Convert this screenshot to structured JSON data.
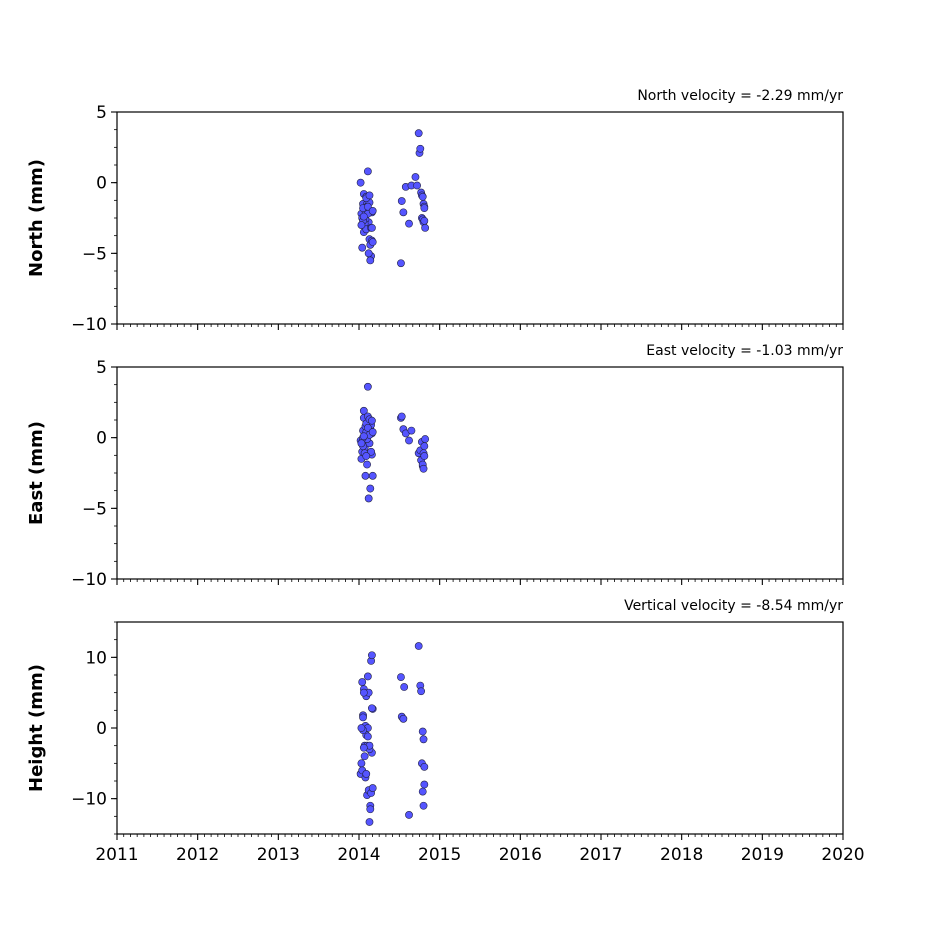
{
  "chart_data": [
    {
      "type": "scatter",
      "title": "North velocity = -2.29 mm/yr",
      "ylabel": "North (mm)",
      "xlim": [
        2011,
        2020
      ],
      "ylim": [
        -10,
        5
      ],
      "yticks": [
        "5",
        "0",
        "−5",
        "−10"
      ],
      "ytick_values": [
        5,
        0,
        -5,
        -10
      ],
      "xtick_labels_shown": false,
      "marker_color": "#5555ff",
      "series": [
        {
          "x": [
            2014.02,
            2014.03,
            2014.04,
            2014.05,
            2014.06,
            2014.07,
            2014.08,
            2014.09,
            2014.1,
            2014.11,
            2014.12,
            2014.13,
            2014.14,
            2014.15,
            2014.16,
            2014.17,
            2014.04,
            2014.06,
            2014.08,
            2014.1,
            2014.12,
            2014.14,
            2014.16,
            2014.05,
            2014.07,
            2014.09,
            2014.11,
            2014.13,
            2014.15,
            2014.05,
            2014.09,
            2014.13,
            2014.03,
            2014.06,
            2014.11,
            2014.16,
            2014.17,
            2014.52,
            2014.53,
            2014.55,
            2014.58,
            2014.62,
            2014.65,
            2014.7,
            2014.72,
            2014.74,
            2014.75,
            2014.76,
            2014.77,
            2014.78,
            2014.79,
            2014.8,
            2014.81,
            2014.78,
            2014.79,
            2014.8,
            2014.81,
            2014.82,
            2014.81
          ],
          "y": [
            0.0,
            -2.2,
            -2.5,
            -1.5,
            -0.8,
            -3.0,
            -2.0,
            -1.0,
            -1.5,
            0.8,
            -2.8,
            -4.0,
            -4.4,
            -5.2,
            -4.1,
            -4.2,
            -4.6,
            -3.5,
            -2.6,
            -1.7,
            -5.0,
            -5.5,
            -2.1,
            -1.8,
            -2.9,
            -3.3,
            -2.2,
            -1.4,
            -3.2,
            -2.7,
            -1.1,
            -0.9,
            -3.0,
            -2.4,
            -1.7,
            -3.2,
            -2.0,
            -5.7,
            -1.3,
            -2.1,
            -0.3,
            -2.9,
            -0.2,
            0.4,
            -0.2,
            3.5,
            2.1,
            2.4,
            -0.7,
            -0.9,
            -1.0,
            -1.5,
            -1.7,
            -2.5,
            -2.6,
            -2.8,
            -2.7,
            -3.2,
            -1.8
          ]
        }
      ]
    },
    {
      "type": "scatter",
      "title": "East velocity = -1.03 mm/yr",
      "ylabel": "East (mm)",
      "xlim": [
        2011,
        2020
      ],
      "ylim": [
        -10,
        5
      ],
      "yticks": [
        "5",
        "0",
        "−5",
        "−10"
      ],
      "ytick_values": [
        5,
        0,
        -5,
        -10
      ],
      "xtick_labels_shown": false,
      "marker_color": "#5555ff",
      "series": [
        {
          "x": [
            2014.02,
            2014.03,
            2014.04,
            2014.05,
            2014.06,
            2014.07,
            2014.08,
            2014.09,
            2014.1,
            2014.11,
            2014.12,
            2014.13,
            2014.14,
            2014.15,
            2014.16,
            2014.17,
            2014.04,
            2014.06,
            2014.08,
            2014.1,
            2014.12,
            2014.14,
            2014.16,
            2014.05,
            2014.07,
            2014.09,
            2014.11,
            2014.13,
            2014.15,
            2014.05,
            2014.09,
            2014.13,
            2014.03,
            2014.06,
            2014.11,
            2014.16,
            2014.17,
            2014.52,
            2014.53,
            2014.55,
            2014.58,
            2014.62,
            2014.65,
            2014.74,
            2014.76,
            2014.77,
            2014.78,
            2014.79,
            2014.8,
            2014.81,
            2014.79,
            2014.8,
            2014.81,
            2014.82
          ],
          "y": [
            -0.2,
            -1.5,
            -1.0,
            0.5,
            1.9,
            -0.7,
            -2.7,
            0.4,
            -1.9,
            3.6,
            1.2,
            -0.4,
            0.6,
            0.9,
            -1.2,
            -2.7,
            -0.3,
            1.4,
            0.8,
            -0.1,
            -4.3,
            -3.6,
            0.3,
            0.0,
            -1.1,
            1.0,
            1.5,
            0.2,
            -1.0,
            -0.6,
            -1.3,
            1.3,
            -0.4,
            0.1,
            0.7,
            1.2,
            0.4,
            1.4,
            1.5,
            0.6,
            0.3,
            -0.2,
            0.5,
            -1.1,
            -0.9,
            -1.6,
            -0.3,
            -2.0,
            -1.1,
            -1.3,
            -1.9,
            -2.2,
            -0.6,
            -0.1
          ]
        }
      ]
    },
    {
      "type": "scatter",
      "title": "Vertical velocity = -8.54 mm/yr",
      "ylabel": "Height (mm)",
      "xlim": [
        2011,
        2020
      ],
      "ylim": [
        -15,
        15
      ],
      "yticks": [
        "10",
        "0",
        "−10"
      ],
      "ytick_values": [
        10,
        0,
        -10
      ],
      "xticks": [
        "2011",
        "2012",
        "2013",
        "2014",
        "2015",
        "2016",
        "2017",
        "2018",
        "2019",
        "2020"
      ],
      "xtick_values": [
        2011,
        2012,
        2013,
        2014,
        2015,
        2016,
        2017,
        2018,
        2019,
        2020
      ],
      "marker_color": "#5555ff",
      "series": [
        {
          "x": [
            2014.02,
            2014.03,
            2014.04,
            2014.05,
            2014.06,
            2014.07,
            2014.08,
            2014.09,
            2014.1,
            2014.11,
            2014.12,
            2014.13,
            2014.14,
            2014.15,
            2014.16,
            2014.17,
            2014.04,
            2014.06,
            2014.08,
            2014.1,
            2014.12,
            2014.14,
            2014.16,
            2014.05,
            2014.07,
            2014.09,
            2014.11,
            2014.13,
            2014.15,
            2014.05,
            2014.09,
            2014.13,
            2014.03,
            2014.06,
            2014.11,
            2014.16,
            2014.17,
            2014.52,
            2014.53,
            2014.55,
            2014.56,
            2014.62,
            2014.74,
            2014.76,
            2014.77,
            2014.78,
            2014.79,
            2014.8,
            2014.81,
            2014.79,
            2014.8,
            2014.81
          ],
          "y": [
            -6.5,
            -5.0,
            6.5,
            1.8,
            5.5,
            -2.5,
            -7.0,
            4.5,
            -9.5,
            7.3,
            5.0,
            -13.3,
            -11.0,
            9.5,
            10.3,
            2.7,
            -6.0,
            5.0,
            0.3,
            -2.5,
            -8.8,
            -11.5,
            -3.5,
            1.5,
            -4.0,
            -1.0,
            0.0,
            -3.0,
            -9.2,
            -0.3,
            -6.5,
            -2.5,
            0.0,
            -2.8,
            -1.2,
            2.8,
            -8.5,
            7.2,
            1.6,
            1.3,
            5.8,
            -12.3,
            11.6,
            6.0,
            5.2,
            -5.0,
            -0.5,
            -1.6,
            -8.0,
            -9.0,
            -11.0,
            -5.5
          ]
        }
      ]
    }
  ]
}
